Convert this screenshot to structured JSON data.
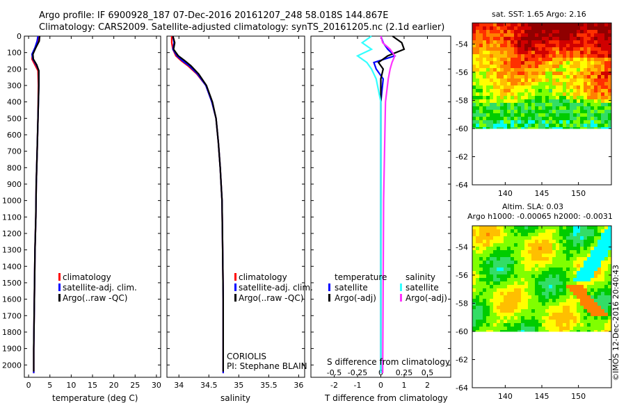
{
  "header": {
    "line1": "Argo profile: IF 6900928_187 07-Dec-2016 20161207_248 58.018S 144.867E",
    "line2": "Climatology: CARS2009. Satellite-adjusted climatology: synTS_20161205.nc (2.1d earlier)"
  },
  "colors": {
    "climatology": "#ff0000",
    "satellite": "#0000ff",
    "argo": "#000000",
    "argo_salinity_diff": "#ff33ff",
    "sat_salinity_diff": "#33ffff"
  },
  "chart_data": [
    {
      "type": "line",
      "name": "temperature",
      "xlabel": "temperature (deg C)",
      "xlim": [
        -1,
        31
      ],
      "ylim": [
        0,
        2075
      ],
      "xticks": [
        "0",
        "5",
        "10",
        "15",
        "20",
        "25",
        "30"
      ],
      "xtick_values": [
        0,
        5,
        10,
        15,
        20,
        25,
        30
      ],
      "yticks": [
        "0",
        "100",
        "200",
        "300",
        "400",
        "500",
        "600",
        "700",
        "800",
        "900",
        "1000",
        "1100",
        "1200",
        "1300",
        "1400",
        "1500",
        "1600",
        "1700",
        "1800",
        "1900",
        "2000"
      ],
      "legend": [
        "climatology",
        "satellite-adj. clim.",
        "Argo(..raw -QC)"
      ],
      "series": [
        {
          "name": "climatology",
          "color": "#ff0000",
          "x": [
            2.5,
            2.3,
            1.7,
            0.9,
            0.8,
            1.5,
            2.2,
            2.3,
            2.2,
            2.0,
            1.8,
            1.7,
            1.5,
            1.4,
            1.3,
            1.2,
            1.2
          ],
          "y": [
            0,
            30,
            70,
            110,
            140,
            175,
            210,
            300,
            500,
            700,
            900,
            1100,
            1300,
            1500,
            1700,
            1900,
            2050
          ]
        },
        {
          "name": "satellite-adj. clim.",
          "color": "#0000ff",
          "x": [
            2.2,
            2.0,
            1.5,
            0.8,
            1.0,
            1.8,
            2.4,
            2.4,
            2.2,
            2.0,
            1.8,
            1.7,
            1.5,
            1.4,
            1.3,
            1.2,
            1.2
          ],
          "y": [
            0,
            30,
            70,
            110,
            140,
            175,
            210,
            300,
            500,
            700,
            900,
            1100,
            1300,
            1500,
            1700,
            1900,
            2050
          ]
        },
        {
          "name": "Argo(..raw -QC)",
          "color": "#000000",
          "x": [
            2.6,
            2.5,
            1.7,
            1.0,
            1.1,
            1.9,
            2.4,
            2.4,
            2.2,
            2.0,
            1.8,
            1.7,
            1.5,
            1.4,
            1.3,
            1.2,
            1.2
          ],
          "y": [
            0,
            30,
            70,
            110,
            140,
            175,
            210,
            300,
            500,
            700,
            900,
            1100,
            1300,
            1500,
            1700,
            1900,
            2040
          ]
        }
      ]
    },
    {
      "type": "line",
      "name": "salinity",
      "xlabel": "salinity",
      "xlim": [
        33.8,
        36.1
      ],
      "ylim": [
        0,
        2075
      ],
      "xticks": [
        "34",
        "34.5",
        "35",
        "35.5",
        "36"
      ],
      "xtick_values": [
        34,
        34.5,
        35,
        35.5,
        36
      ],
      "legend": [
        "climatology",
        "satellite-adj. clim.",
        "Argo(..raw -QC)"
      ],
      "annotations": [
        "CORIOLIS",
        "PI: Stephane BLAIN"
      ],
      "series": [
        {
          "name": "climatology",
          "color": "#ff0000",
          "x": [
            33.88,
            33.88,
            33.9,
            33.95,
            34.04,
            34.15,
            34.3,
            34.45,
            34.55,
            34.62,
            34.66,
            34.69,
            34.72,
            34.73,
            34.74,
            34.74,
            34.74
          ],
          "y": [
            0,
            40,
            80,
            120,
            150,
            180,
            230,
            300,
            400,
            500,
            650,
            800,
            1000,
            1300,
            1600,
            1900,
            2050
          ]
        },
        {
          "name": "satellite-adj. clim.",
          "color": "#0000ff",
          "x": [
            33.9,
            33.92,
            33.9,
            33.97,
            34.06,
            34.17,
            34.31,
            34.45,
            34.55,
            34.62,
            34.66,
            34.69,
            34.72,
            34.73,
            34.74,
            34.74,
            34.74
          ],
          "y": [
            0,
            40,
            80,
            120,
            150,
            180,
            230,
            300,
            400,
            500,
            650,
            800,
            1000,
            1300,
            1600,
            1900,
            2050
          ]
        },
        {
          "name": "Argo(..raw -QC)",
          "color": "#000000",
          "x": [
            33.9,
            33.93,
            33.91,
            33.99,
            34.1,
            34.2,
            34.33,
            34.46,
            34.56,
            34.62,
            34.66,
            34.69,
            34.72,
            34.73,
            34.74,
            34.74,
            34.74
          ],
          "y": [
            0,
            40,
            80,
            120,
            150,
            180,
            230,
            300,
            400,
            500,
            650,
            800,
            1000,
            1300,
            1600,
            1900,
            2040
          ]
        }
      ]
    },
    {
      "type": "line",
      "name": "difference",
      "xlabel": "T difference from climatology",
      "title_bottom": "S difference from climatology",
      "xlim": [
        -3,
        3
      ],
      "ylim": [
        0,
        2075
      ],
      "xticks": [
        "-2",
        "-1",
        "0",
        "1",
        "2"
      ],
      "xtick_values": [
        -2,
        -1,
        0,
        1,
        2
      ],
      "s_ticks": [
        "-0.5",
        "-0.25",
        "0",
        "0.25",
        "0.5"
      ],
      "s_tick_values": [
        -0.5,
        -0.25,
        0,
        0.25,
        0.5
      ],
      "legend_temperature_title": "temperature",
      "legend_salinity_title": "salinity",
      "legend_temperature": [
        "satellite",
        "Argo(-adj)"
      ],
      "legend_salinity": [
        "satellite",
        "Argo(-adj)"
      ],
      "series": [
        {
          "name": "T satellite",
          "color": "#0000ff",
          "x": [
            0,
            0.1,
            0.3,
            0.6,
            -0.3,
            -0.2,
            0.1,
            0,
            0,
            0
          ],
          "y": [
            0,
            40,
            80,
            120,
            160,
            200,
            260,
            400,
            1000,
            2050
          ]
        },
        {
          "name": "T Argo(-adj)",
          "color": "#000000",
          "x": [
            0.5,
            0.9,
            1.0,
            0.3,
            -0.1,
            0.1,
            0,
            0,
            0,
            0
          ],
          "y": [
            0,
            40,
            80,
            120,
            160,
            200,
            260,
            400,
            1000,
            2050
          ]
        },
        {
          "name": "S satellite",
          "color": "#33ffff",
          "x": [
            -0.1,
            -0.2,
            -0.1,
            -0.25,
            -0.15,
            -0.1,
            -0.05,
            0,
            0,
            0
          ],
          "y": [
            0,
            40,
            80,
            120,
            160,
            200,
            260,
            400,
            1000,
            2050
          ]
        },
        {
          "name": "S Argo(-adj)",
          "color": "#ff33ff",
          "x": [
            0,
            0.02,
            0.1,
            0.15,
            0.12,
            0.1,
            0.08,
            0.05,
            0.03,
            0.02
          ],
          "y": [
            0,
            40,
            80,
            120,
            160,
            200,
            260,
            400,
            1000,
            2050
          ]
        }
      ]
    },
    {
      "type": "heatmap",
      "name": "sst_map",
      "title": "sat. SST: 1.65 Argo: 2.16",
      "xlim": [
        135.5,
        154.5
      ],
      "ylim": [
        -64,
        -52.5
      ],
      "xticks": [
        "140",
        "145",
        "150"
      ],
      "xtick_values": [
        140,
        145,
        150
      ],
      "yticks": [
        "-54",
        "-56",
        "-58",
        "-60",
        "-62",
        "-64"
      ],
      "ytick_values": [
        -54,
        -56,
        -58,
        -60,
        -62,
        -64
      ],
      "data_lat_min": -60
    },
    {
      "type": "heatmap",
      "name": "sla_map",
      "title_line1": "Altim. SLA: 0.03",
      "title_line2": "Argo h1000: -0.00065 h2000: -0.0031",
      "xlim": [
        135.5,
        154.5
      ],
      "ylim": [
        -64,
        -52.5
      ],
      "xticks": [
        "140",
        "145",
        "150"
      ],
      "xtick_values": [
        140,
        145,
        150
      ],
      "yticks": [
        "-54",
        "-56",
        "-58",
        "-60",
        "-62",
        "-64"
      ],
      "ytick_values": [
        -54,
        -56,
        -58,
        -60,
        -62,
        -64
      ],
      "data_lat_min": -60
    }
  ],
  "credit": "©IMOS 12-Dec-2016 20:40:43"
}
